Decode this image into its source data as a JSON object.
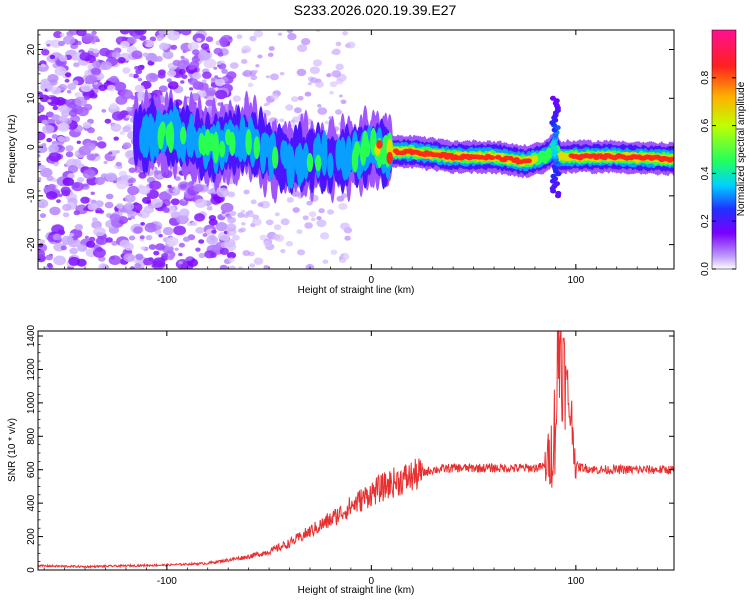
{
  "title": "S233.2026.020.19.39.E27",
  "chart_data": [
    {
      "type": "heatmap",
      "xlabel": "Height of straight line (km)",
      "ylabel": "Frequency (Hz)",
      "xlim": [
        -163,
        148
      ],
      "ylim": [
        -25,
        24
      ],
      "x_ticks": [
        -100,
        0,
        100
      ],
      "y_ticks": [
        -20,
        -10,
        0,
        10,
        20
      ],
      "colorbar": {
        "label": "Normalized spectral amplitude",
        "range": [
          0,
          1
        ],
        "ticks": [
          0.0,
          0.2,
          0.4,
          0.6,
          0.8
        ],
        "colors": [
          "#ffffff",
          "#a070ff",
          "#6a00ff",
          "#2020ff",
          "#00e0ff",
          "#20ff40",
          "#ffff00",
          "#ff2020",
          "#ff0080"
        ]
      },
      "ridge": {
        "x": [
          -115,
          -100,
          -90,
          -80,
          -70,
          -60,
          -50,
          -40,
          -30,
          -20,
          -10,
          0,
          10,
          20,
          40,
          60,
          75,
          85,
          90,
          92,
          100,
          120,
          148
        ],
        "freq": [
          2,
          3,
          2,
          0,
          1,
          2,
          -1,
          -3,
          -2,
          -3,
          -2,
          0,
          -1,
          -1,
          -2,
          -2,
          -3,
          -2,
          0,
          -2,
          -2,
          -2,
          -2.5
        ],
        "amp": [
          0.3,
          0.4,
          0.35,
          0.45,
          0.4,
          0.4,
          0.35,
          0.35,
          0.35,
          0.3,
          0.4,
          0.5,
          0.75,
          0.9,
          0.9,
          0.85,
          0.85,
          0.5,
          0.4,
          0.7,
          0.9,
          0.9,
          0.9
        ]
      },
      "spike": {
        "x": 90,
        "freq_range": [
          -10,
          10
        ]
      }
    },
    {
      "type": "line",
      "xlabel": "Height of straight line (km)",
      "ylabel": "SNR (10 * v/v)",
      "xlim": [
        -163,
        148
      ],
      "ylim": [
        0,
        1430
      ],
      "x_ticks": [
        -100,
        0,
        100
      ],
      "y_ticks": [
        0,
        200,
        400,
        600,
        800,
        1000,
        1200,
        1400
      ],
      "color": "#e83030",
      "x": [
        -163,
        -140,
        -120,
        -100,
        -80,
        -60,
        -50,
        -40,
        -30,
        -20,
        -10,
        -5,
        0,
        10,
        20,
        30,
        40,
        60,
        80,
        85,
        88,
        90,
        92,
        95,
        98,
        100,
        110,
        130,
        148
      ],
      "values": [
        25,
        20,
        25,
        30,
        40,
        80,
        110,
        160,
        230,
        300,
        380,
        420,
        460,
        520,
        560,
        600,
        610,
        610,
        610,
        620,
        700,
        900,
        1400,
        1100,
        900,
        620,
        600,
        600,
        600
      ]
    }
  ]
}
